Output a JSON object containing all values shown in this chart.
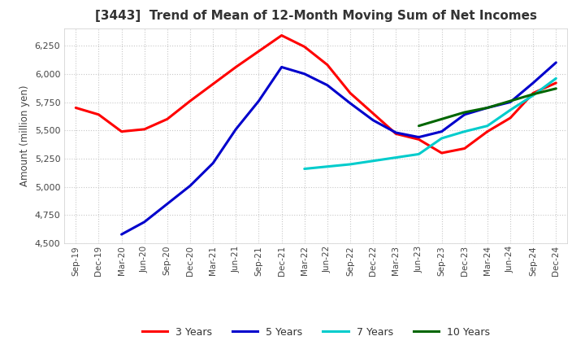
{
  "title": "[3443]  Trend of Mean of 12-Month Moving Sum of Net Incomes",
  "ylabel": "Amount (million yen)",
  "ylim": [
    4500,
    6400
  ],
  "yticks": [
    4500,
    4750,
    5000,
    5250,
    5500,
    5750,
    6000,
    6250
  ],
  "background_color": "#ffffff",
  "grid_color": "#c8c8c8",
  "series": {
    "3 Years": {
      "color": "#ff0000",
      "x": [
        "Sep-19",
        "Dec-19",
        "Mar-20",
        "Jun-20",
        "Sep-20",
        "Dec-20",
        "Mar-21",
        "Jun-21",
        "Sep-21",
        "Dec-21",
        "Mar-22",
        "Jun-22",
        "Sep-22",
        "Dec-22",
        "Mar-23",
        "Jun-23",
        "Sep-23",
        "Dec-23",
        "Mar-24",
        "Jun-24",
        "Sep-24",
        "Dec-24"
      ],
      "y": [
        5700,
        5640,
        5490,
        5510,
        5600,
        5760,
        5910,
        6060,
        6200,
        6340,
        6240,
        6080,
        5830,
        5650,
        5470,
        5420,
        5300,
        5340,
        5490,
        5610,
        5830,
        5920
      ]
    },
    "5 Years": {
      "color": "#0000cc",
      "x": [
        "Mar-20",
        "Jun-20",
        "Sep-20",
        "Dec-20",
        "Mar-21",
        "Jun-21",
        "Sep-21",
        "Dec-21",
        "Mar-22",
        "Jun-22",
        "Sep-22",
        "Dec-22",
        "Mar-23",
        "Jun-23",
        "Sep-23",
        "Dec-23",
        "Mar-24",
        "Jun-24",
        "Sep-24",
        "Dec-24"
      ],
      "y": [
        4580,
        4690,
        4850,
        5010,
        5210,
        5510,
        5760,
        6060,
        6000,
        5900,
        5740,
        5590,
        5480,
        5440,
        5490,
        5640,
        5700,
        5750,
        5920,
        6100
      ]
    },
    "7 Years": {
      "color": "#00cccc",
      "x": [
        "Mar-22",
        "Jun-22",
        "Sep-22",
        "Dec-22",
        "Mar-23",
        "Jun-23",
        "Sep-23",
        "Dec-23",
        "Mar-24",
        "Jun-24",
        "Sep-24",
        "Dec-24"
      ],
      "y": [
        5160,
        5180,
        5200,
        5230,
        5260,
        5290,
        5430,
        5490,
        5540,
        5680,
        5810,
        5960
      ]
    },
    "10 Years": {
      "color": "#006600",
      "x": [
        "Jun-23",
        "Sep-23",
        "Dec-23",
        "Mar-24",
        "Jun-24",
        "Sep-24",
        "Dec-24"
      ],
      "y": [
        5540,
        5600,
        5660,
        5700,
        5760,
        5820,
        5870
      ]
    }
  },
  "xticks": [
    "Sep-19",
    "Dec-19",
    "Mar-20",
    "Jun-20",
    "Sep-20",
    "Dec-20",
    "Mar-21",
    "Jun-21",
    "Sep-21",
    "Dec-21",
    "Mar-22",
    "Jun-22",
    "Sep-22",
    "Dec-22",
    "Mar-23",
    "Jun-23",
    "Sep-23",
    "Dec-23",
    "Mar-24",
    "Jun-24",
    "Sep-24",
    "Dec-24"
  ],
  "legend_labels": [
    "3 Years",
    "5 Years",
    "7 Years",
    "10 Years"
  ],
  "legend_colors": [
    "#ff0000",
    "#0000cc",
    "#00cccc",
    "#006600"
  ]
}
